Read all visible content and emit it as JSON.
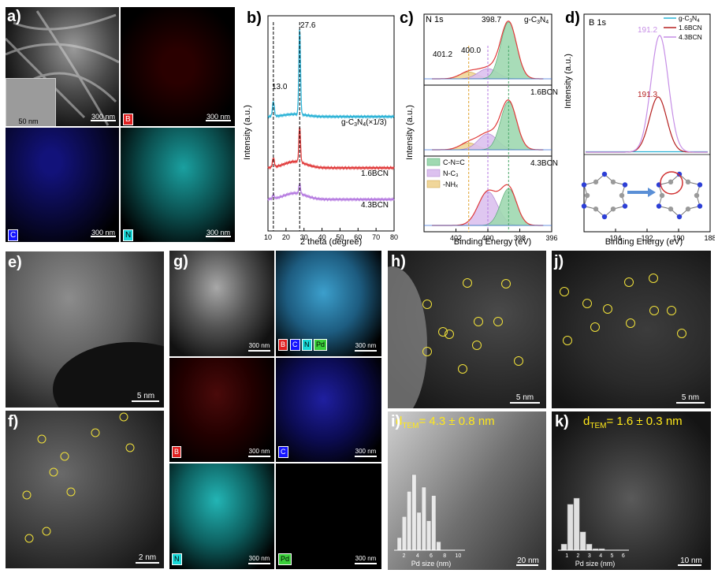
{
  "figure": {
    "panels": {
      "a": {
        "label": "a)",
        "tiles": [
          {
            "scale": "300 nm",
            "inset_scale": "50 nm"
          },
          {
            "scale": "300 nm",
            "element": "B",
            "color": "#e02020"
          },
          {
            "scale": "300 nm",
            "element": "C",
            "color": "#1515ff"
          },
          {
            "scale": "300 nm",
            "element": "N",
            "color": "#18d6d6"
          }
        ]
      },
      "b": {
        "label": "b)",
        "xlabel": "2 theta (degree)",
        "ylabel": "Intensity (a.u.)"
      },
      "c": {
        "label": "c)",
        "title": "N 1s",
        "xlabel": "Binding Energy (eV)",
        "ylabel": "Intensity (a.u.)",
        "legend": [
          "C-N=C",
          "N-C₃",
          "-NHₓ"
        ]
      },
      "d": {
        "label": "d)",
        "title": "B 1s",
        "xlabel": "Binding Energy (eV)",
        "ylabel": "Intensity (a.u.)"
      },
      "e": {
        "label": "e)",
        "scale": "5 nm"
      },
      "f": {
        "label": "f)",
        "scale": "2 nm"
      },
      "g": {
        "label": "g)",
        "tiles": [
          {
            "scale": "300 nm"
          },
          {
            "scale": "300 nm",
            "tags": [
              "B",
              "C",
              "N",
              "Pd"
            ]
          },
          {
            "scale": "300 nm",
            "element": "B"
          },
          {
            "scale": "300 nm",
            "element": "C"
          },
          {
            "scale": "300 nm",
            "element": "N"
          },
          {
            "scale": "300 nm",
            "element": "Pd"
          }
        ]
      },
      "h": {
        "label": "h)",
        "scale": "5 nm"
      },
      "i": {
        "label": "i)",
        "title": "d₂ₑₘ = 4.3 ± 0.8 nm",
        "title_main": "d",
        "title_sub": "TEM",
        "title_rest": "= 4.3 ± 0.8 nm",
        "scale": "20 nm",
        "hist_xlabel": "Pd size (nm)",
        "hist_ticks": [
          "2",
          "4",
          "6",
          "8",
          "10"
        ]
      },
      "j": {
        "label": "j)",
        "scale": "5 nm"
      },
      "k": {
        "label": "k)",
        "title_main": "d",
        "title_sub": "TEM",
        "title_rest": "= 1.6 ± 0.3 nm",
        "scale": "10 nm",
        "hist_xlabel": "Pd size (nm)",
        "hist_ticks": [
          "1",
          "2",
          "3",
          "4",
          "5",
          "6"
        ]
      }
    }
  },
  "chart_data": [
    {
      "type": "line",
      "panel": "b",
      "xlabel": "2 theta (degree)",
      "ylabel": "Intensity (a.u.)",
      "xlim": [
        10,
        80
      ],
      "xticks": [
        10,
        20,
        30,
        40,
        50,
        60,
        70,
        80
      ],
      "series": [
        {
          "name": "g-C₃N₄(×1/3)",
          "color": "#29b2d6"
        },
        {
          "name": "1.6BCN",
          "color": "#e03a3a"
        },
        {
          "name": "4.3BCN",
          "color": "#b57ae0"
        }
      ],
      "annotations": [
        {
          "text": "13.0",
          "x": 13.0
        },
        {
          "text": "27.6",
          "x": 27.6
        }
      ]
    },
    {
      "type": "line",
      "panel": "c",
      "title": "N 1s",
      "xlabel": "Binding Energy (eV)",
      "ylabel": "Intensity (a.u.)",
      "xlim": [
        404,
        396
      ],
      "xticks": [
        402,
        400,
        398,
        396
      ],
      "sublabels": [
        "g-C₃N₄",
        "1.6BCN",
        "4.3BCN"
      ],
      "peaks_ev": [
        401.2,
        400.0,
        398.7
      ],
      "legend": [
        "C-N=C",
        "N-C₃",
        "-NHₓ"
      ]
    },
    {
      "type": "line",
      "panel": "d",
      "title": "B 1s",
      "xlabel": "Binding Energy (eV)",
      "ylabel": "Intensity (a.u.)",
      "xlim": [
        196,
        188
      ],
      "xticks": [
        194,
        192,
        190,
        188
      ],
      "series": [
        {
          "name": "g-C₃N₄",
          "color": "#29b2d6",
          "peak_ev": null
        },
        {
          "name": "1.6BCN",
          "color": "#b52020",
          "peak_ev": 191.3
        },
        {
          "name": "4.3BCN",
          "color": "#c68ee6",
          "peak_ev": 191.2
        }
      ],
      "legend_position": "top-right"
    },
    {
      "type": "bar",
      "panel": "i",
      "xlabel": "Pd size (nm)",
      "categories": [
        2.5,
        3.0,
        3.5,
        4.0,
        4.5,
        5.0,
        5.5,
        6.0,
        6.5
      ],
      "values": [
        3,
        8,
        14,
        18,
        9,
        15,
        7,
        13,
        2
      ]
    },
    {
      "type": "bar",
      "panel": "k",
      "xlabel": "Pd size (nm)",
      "categories": [
        1.0,
        1.25,
        1.5,
        1.75,
        2.0,
        2.25,
        2.5
      ],
      "values": [
        4,
        30,
        34,
        12,
        4,
        1,
        1
      ]
    }
  ]
}
